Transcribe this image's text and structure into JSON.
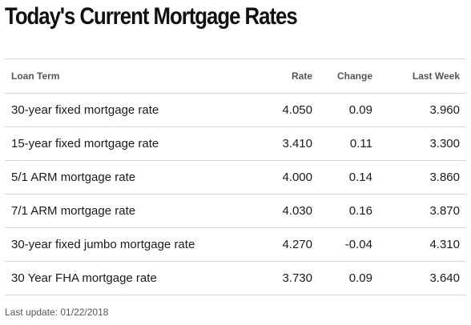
{
  "title": "Today's Current Mortgage Rates",
  "table": {
    "headers": {
      "term": "Loan Term",
      "rate": "Rate",
      "change": "Change",
      "last_week": "Last Week"
    },
    "rows": [
      {
        "term": "30-year fixed mortgage rate",
        "rate": "4.050",
        "change": "0.09",
        "last_week": "3.960"
      },
      {
        "term": "15-year fixed mortgage rate",
        "rate": "3.410",
        "change": "0.11",
        "last_week": "3.300"
      },
      {
        "term": "5/1 ARM mortgage rate",
        "rate": "4.000",
        "change": "0.14",
        "last_week": "3.860"
      },
      {
        "term": "7/1 ARM mortgage rate",
        "rate": "4.030",
        "change": "0.16",
        "last_week": "3.870"
      },
      {
        "term": "30-year fixed jumbo mortgage rate",
        "rate": "4.270",
        "change": "-0.04",
        "last_week": "4.310"
      },
      {
        "term": "30 Year FHA mortgage rate",
        "rate": "3.730",
        "change": "0.09",
        "last_week": "3.640"
      }
    ]
  },
  "footer": {
    "last_update": "Last update: 01/22/2018"
  }
}
